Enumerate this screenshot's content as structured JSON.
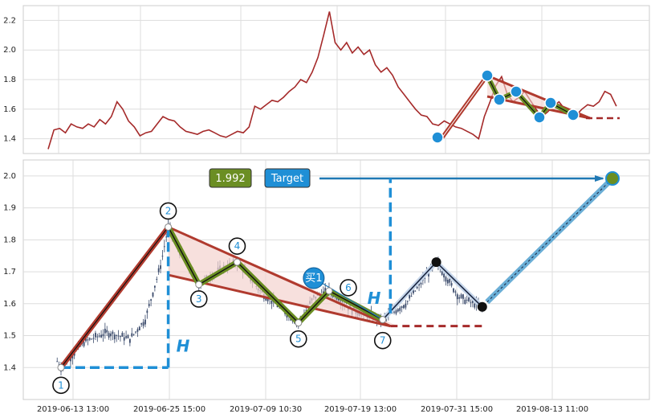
{
  "chart_data": [
    {
      "type": "line",
      "panel": "overview",
      "ylim": [
        1.3,
        2.3
      ],
      "yticks": [
        "1.4",
        "1.6",
        "1.8",
        "2.0",
        "2.2"
      ],
      "grid": true,
      "series": [
        {
          "color": "#a52a2a",
          "x": [
            0,
            2,
            4,
            6,
            8,
            10,
            12,
            14,
            16,
            18,
            20,
            22,
            24,
            26,
            28,
            30,
            32,
            34,
            36,
            38,
            40,
            42,
            44,
            46,
            48,
            50,
            52,
            54,
            56,
            58,
            60,
            62,
            64,
            66,
            68,
            70,
            72,
            74,
            76,
            78,
            80,
            82,
            84,
            86,
            88,
            90,
            92,
            94,
            96,
            98,
            100,
            102,
            104,
            106,
            108,
            110,
            112,
            114,
            116,
            118,
            120,
            122,
            124,
            126,
            128,
            130,
            132,
            134,
            136,
            138,
            140,
            142,
            144,
            146,
            148,
            150,
            152,
            154,
            156,
            158,
            160,
            162,
            164,
            166,
            168,
            170,
            172,
            174,
            176,
            178,
            180,
            182,
            184,
            186,
            188,
            190,
            192,
            194,
            196,
            198
          ],
          "values": [
            1.33,
            1.46,
            1.47,
            1.44,
            1.5,
            1.48,
            1.47,
            1.5,
            1.48,
            1.53,
            1.5,
            1.55,
            1.65,
            1.6,
            1.52,
            1.48,
            1.42,
            1.44,
            1.45,
            1.5,
            1.55,
            1.53,
            1.52,
            1.48,
            1.45,
            1.44,
            1.43,
            1.45,
            1.46,
            1.44,
            1.42,
            1.41,
            1.43,
            1.45,
            1.44,
            1.48,
            1.62,
            1.6,
            1.63,
            1.66,
            1.65,
            1.68,
            1.72,
            1.75,
            1.8,
            1.78,
            1.85,
            1.95,
            2.1,
            2.26,
            2.05,
            2.0,
            2.05,
            1.98,
            2.02,
            1.97,
            2.0,
            1.9,
            1.85,
            1.88,
            1.83,
            1.75,
            1.7,
            1.65,
            1.6,
            1.56,
            1.55,
            1.5,
            1.49,
            1.52,
            1.5,
            1.48,
            1.47,
            1.45,
            1.43,
            1.4,
            1.55,
            1.65,
            1.76,
            1.82,
            1.7,
            1.65,
            1.68,
            1.72,
            1.66,
            1.6,
            1.55,
            1.58,
            1.62,
            1.65,
            1.6,
            1.57,
            1.56,
            1.6,
            1.63,
            1.62,
            1.65,
            1.72,
            1.7,
            1.62
          ]
        }
      ]
    },
    {
      "type": "candlestick",
      "panel": "detail",
      "ylim": [
        1.3,
        2.05
      ],
      "yticks": [
        "1.4",
        "1.5",
        "1.6",
        "1.7",
        "1.8",
        "1.9",
        "2.0"
      ],
      "xticks": [
        "2019-06-13 13:00",
        "2019-06-25 15:00",
        "2019-07-09 10:30",
        "2019-07-19 13:00",
        "2019-07-31 15:00",
        "2019-08-13 11:00"
      ],
      "grid": true,
      "pattern_points": [
        {
          "label": "1",
          "x": 0,
          "y": 1.4
        },
        {
          "label": "2",
          "x": 28,
          "y": 1.84
        },
        {
          "label": "3",
          "x": 36,
          "y": 1.66
        },
        {
          "label": "4",
          "x": 46,
          "y": 1.73
        },
        {
          "label": "5",
          "x": 62,
          "y": 1.54
        },
        {
          "label": "6",
          "x": 70,
          "y": 1.64
        },
        {
          "label": "7",
          "x": 84,
          "y": 1.55
        }
      ],
      "post_points": [
        {
          "x": 84,
          "y": 1.55
        },
        {
          "x": 98,
          "y": 1.73
        },
        {
          "x": 110,
          "y": 1.59
        }
      ],
      "target_point": {
        "x": 144,
        "y": 1.992
      },
      "value_label": "1.992",
      "target_label": "Target",
      "buy_label": "买1",
      "h_label": "H",
      "colors": {
        "up": "#3a4a6b",
        "down": "#3a4a6b",
        "pattern": "#6b8e23",
        "lines": "#b03a2e",
        "accent": "#1f8fd6"
      }
    }
  ]
}
